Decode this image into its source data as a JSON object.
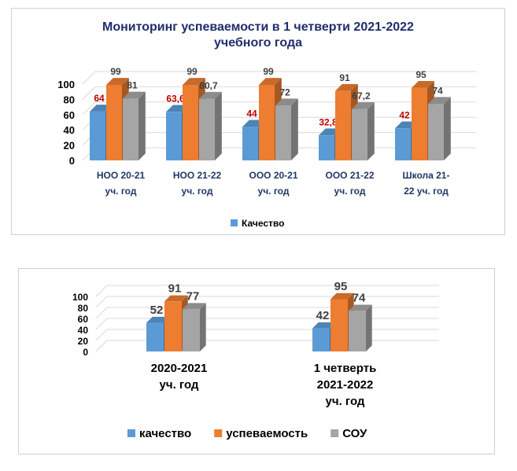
{
  "chart_data": [
    {
      "type": "bar",
      "title_lines": [
        "Мониторинг успеваемости в 1 четверти 2021-2022",
        "учебного года"
      ],
      "categories": [
        [
          "НОО 20-21",
          "уч. год"
        ],
        [
          "НОО 21-22",
          "уч. год"
        ],
        [
          "ООО 20-21",
          "уч. год"
        ],
        [
          "ООО 21-22",
          "уч. год"
        ],
        [
          "Школа 21-",
          "22 уч. год"
        ]
      ],
      "series": [
        {
          "name": "Качество",
          "values": [
            64,
            63.6,
            44,
            32.8,
            42
          ],
          "labels": [
            "64",
            "63,6",
            "44",
            "32,8",
            "42"
          ],
          "color": "#5b9bd5",
          "label_color": "#c00000"
        },
        {
          "values": [
            99,
            99,
            99,
            91,
            95
          ],
          "labels": [
            "99",
            "99",
            "99",
            "91",
            "95"
          ],
          "color": "#ed7d31",
          "label_color": "#404040"
        },
        {
          "values": [
            81,
            80.7,
            72,
            67.2,
            74
          ],
          "labels": [
            "81",
            "80,7",
            "72",
            "67,2",
            "74"
          ],
          "color": "#a5a5a5",
          "label_color": "#404040"
        }
      ],
      "y_ticks": [
        "0",
        "20",
        "40",
        "60",
        "80",
        "100"
      ],
      "ylim": [
        0,
        100
      ],
      "grid": true,
      "legend_position": "bottom",
      "bar_style": "3d"
    },
    {
      "type": "bar",
      "categories": [
        [
          "2020-2021",
          "уч. год"
        ],
        [
          "1 четверть",
          "2021-2022",
          "уч. год"
        ]
      ],
      "series": [
        {
          "name": "качество",
          "values": [
            52,
            42
          ],
          "labels": [
            "52",
            "42"
          ],
          "color": "#5b9bd5",
          "label_color": "#404040"
        },
        {
          "name": "успеваемость",
          "values": [
            91,
            95
          ],
          "labels": [
            "91",
            "95"
          ],
          "color": "#ed7d31",
          "label_color": "#404040"
        },
        {
          "name": "СОУ",
          "values": [
            77,
            74
          ],
          "labels": [
            "77",
            "74"
          ],
          "color": "#a5a5a5",
          "label_color": "#404040"
        }
      ],
      "y_ticks": [
        "0",
        "20",
        "40",
        "60",
        "80",
        "100"
      ],
      "ylim": [
        0,
        100
      ],
      "grid": true,
      "legend_position": "bottom",
      "bar_style": "3d"
    }
  ]
}
